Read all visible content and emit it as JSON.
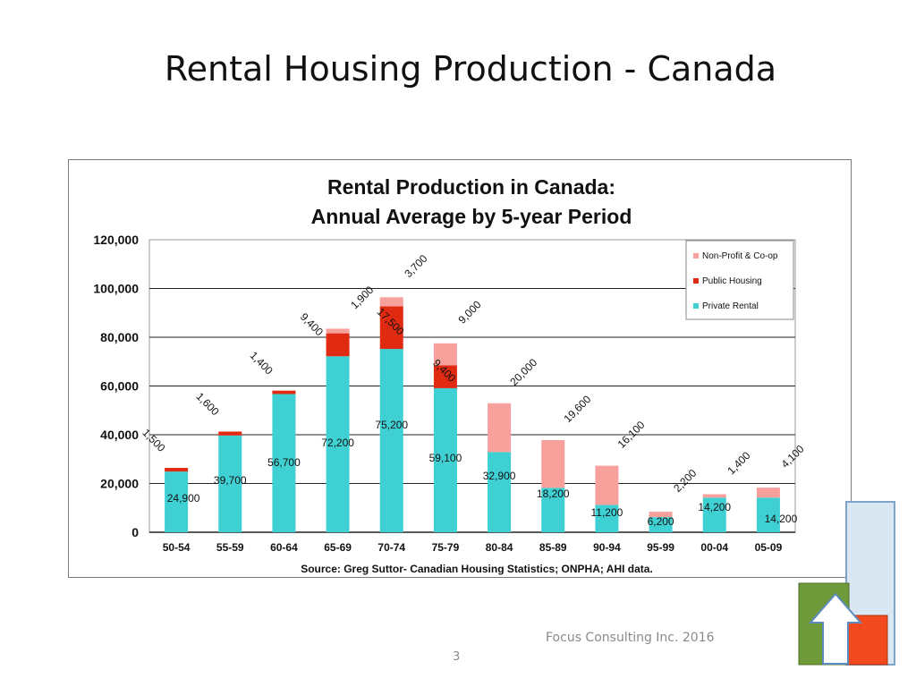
{
  "slide": {
    "title": "Rental Housing Production - Canada",
    "footer": "Focus Consulting Inc. 2016",
    "page_number": "3"
  },
  "chart_data": {
    "type": "bar",
    "stacked": true,
    "title": "Rental Production in Canada:",
    "subtitle": "Annual Average by 5-year Period",
    "source": "Source: Greg Suttor- Canadian Housing Statistics; ONPHA; AHI data.",
    "categories": [
      "50-54",
      "55-59",
      "60-64",
      "65-69",
      "70-74",
      "75-79",
      "80-84",
      "85-89",
      "90-94",
      "95-99",
      "00-04",
      "05-09"
    ],
    "series": [
      {
        "name": "Private Rental",
        "color": "#3fd0d4",
        "values": [
          24900,
          39700,
          56700,
          72200,
          75200,
          59100,
          32900,
          18200,
          11200,
          6200,
          14200,
          14200
        ],
        "labels": [
          "24,900",
          "39,700",
          "56,700",
          "72,200",
          "75,200",
          "59,100",
          "32,900",
          "18,200",
          "11,200",
          "6,200",
          "14,200",
          "14,200"
        ]
      },
      {
        "name": "Public Housing",
        "color": "#e02a12",
        "values": [
          1500,
          1600,
          1400,
          9400,
          17500,
          9400,
          0,
          0,
          0,
          0,
          0,
          0
        ],
        "labels": [
          "1,500",
          "1,600",
          "1,400",
          "9,400",
          "17,500",
          "9,400",
          "",
          "",
          "",
          "",
          "",
          ""
        ]
      },
      {
        "name": "Non-Profit & Co-op",
        "color": "#f7a09c",
        "values": [
          0,
          0,
          0,
          1900,
          3700,
          9000,
          20000,
          19600,
          16100,
          2200,
          1400,
          4100
        ],
        "labels": [
          "",
          "",
          "",
          "1,900",
          "3,700",
          "9,000",
          "20,000",
          "19,600",
          "16,100",
          "2,200",
          "1,400",
          "4,100"
        ]
      }
    ],
    "ylim": [
      0,
      120000
    ],
    "yticks": [
      "0",
      "20,000",
      "40,000",
      "60,000",
      "80,000",
      "100,000",
      "120,000"
    ],
    "grid": true,
    "legend": "top-right",
    "xlabel": "",
    "ylabel": ""
  }
}
